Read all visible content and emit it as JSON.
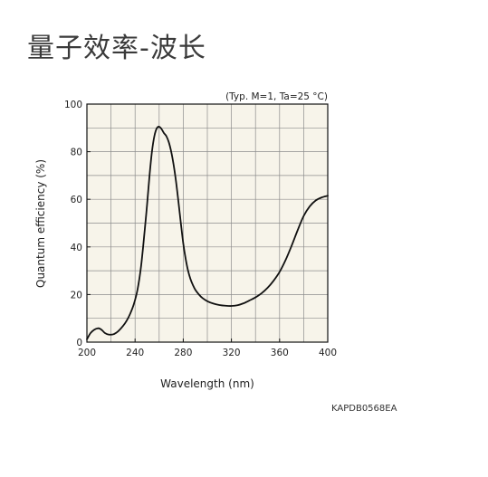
{
  "page": {
    "title": "量子效率-波长",
    "doc_code": "KAPDB0568EA"
  },
  "colors": {
    "plot_background": "#f7f4ea",
    "grid": "#8c8c8c",
    "curve": "#111111",
    "text": "#222222"
  },
  "chart_data": {
    "type": "line",
    "title": "",
    "subtitle": "",
    "annotation": "(Typ. M=1, Ta=25 °C)",
    "xlabel": "Wavelength (nm)",
    "ylabel": "Quantum efficiency (%)",
    "xlim": [
      200,
      400
    ],
    "ylim": [
      0,
      100
    ],
    "xticks": [
      200,
      240,
      280,
      320,
      360,
      400
    ],
    "yticks": [
      0,
      20,
      40,
      60,
      80,
      100
    ],
    "x_grid_step": 20,
    "y_grid_step": 10,
    "grid": true,
    "legend": "none",
    "series": [
      {
        "x": [
          200,
          203,
          206,
          209,
          211,
          213,
          215,
          218,
          222,
          226,
          230,
          233,
          236,
          239,
          242,
          245,
          248,
          250,
          252,
          254,
          256,
          258,
          260,
          262,
          264,
          266,
          268,
          270,
          272,
          274,
          276,
          278,
          280,
          282,
          284,
          286,
          288,
          290,
          293,
          296,
          300,
          305,
          310,
          315,
          320,
          325,
          330,
          335,
          340,
          345,
          350,
          355,
          360,
          365,
          370,
          375,
          380,
          385,
          390,
          395,
          400
        ],
        "y": [
          1.2,
          3.8,
          5.2,
          5.8,
          5.6,
          4.8,
          3.8,
          3.2,
          3.3,
          4.6,
          6.8,
          9.0,
          12.0,
          16.0,
          22.0,
          32.0,
          47.0,
          58.0,
          70.0,
          80.0,
          86.5,
          89.8,
          90.5,
          89.5,
          87.8,
          86.5,
          84.0,
          80.0,
          74.5,
          67.5,
          59.0,
          50.0,
          41.5,
          35.0,
          30.0,
          26.5,
          24.0,
          22.0,
          20.0,
          18.5,
          17.2,
          16.2,
          15.6,
          15.3,
          15.2,
          15.5,
          16.3,
          17.5,
          18.8,
          20.5,
          22.8,
          25.8,
          29.5,
          34.5,
          40.5,
          47.0,
          53.0,
          57.0,
          59.5,
          60.8,
          61.5
        ]
      }
    ]
  }
}
